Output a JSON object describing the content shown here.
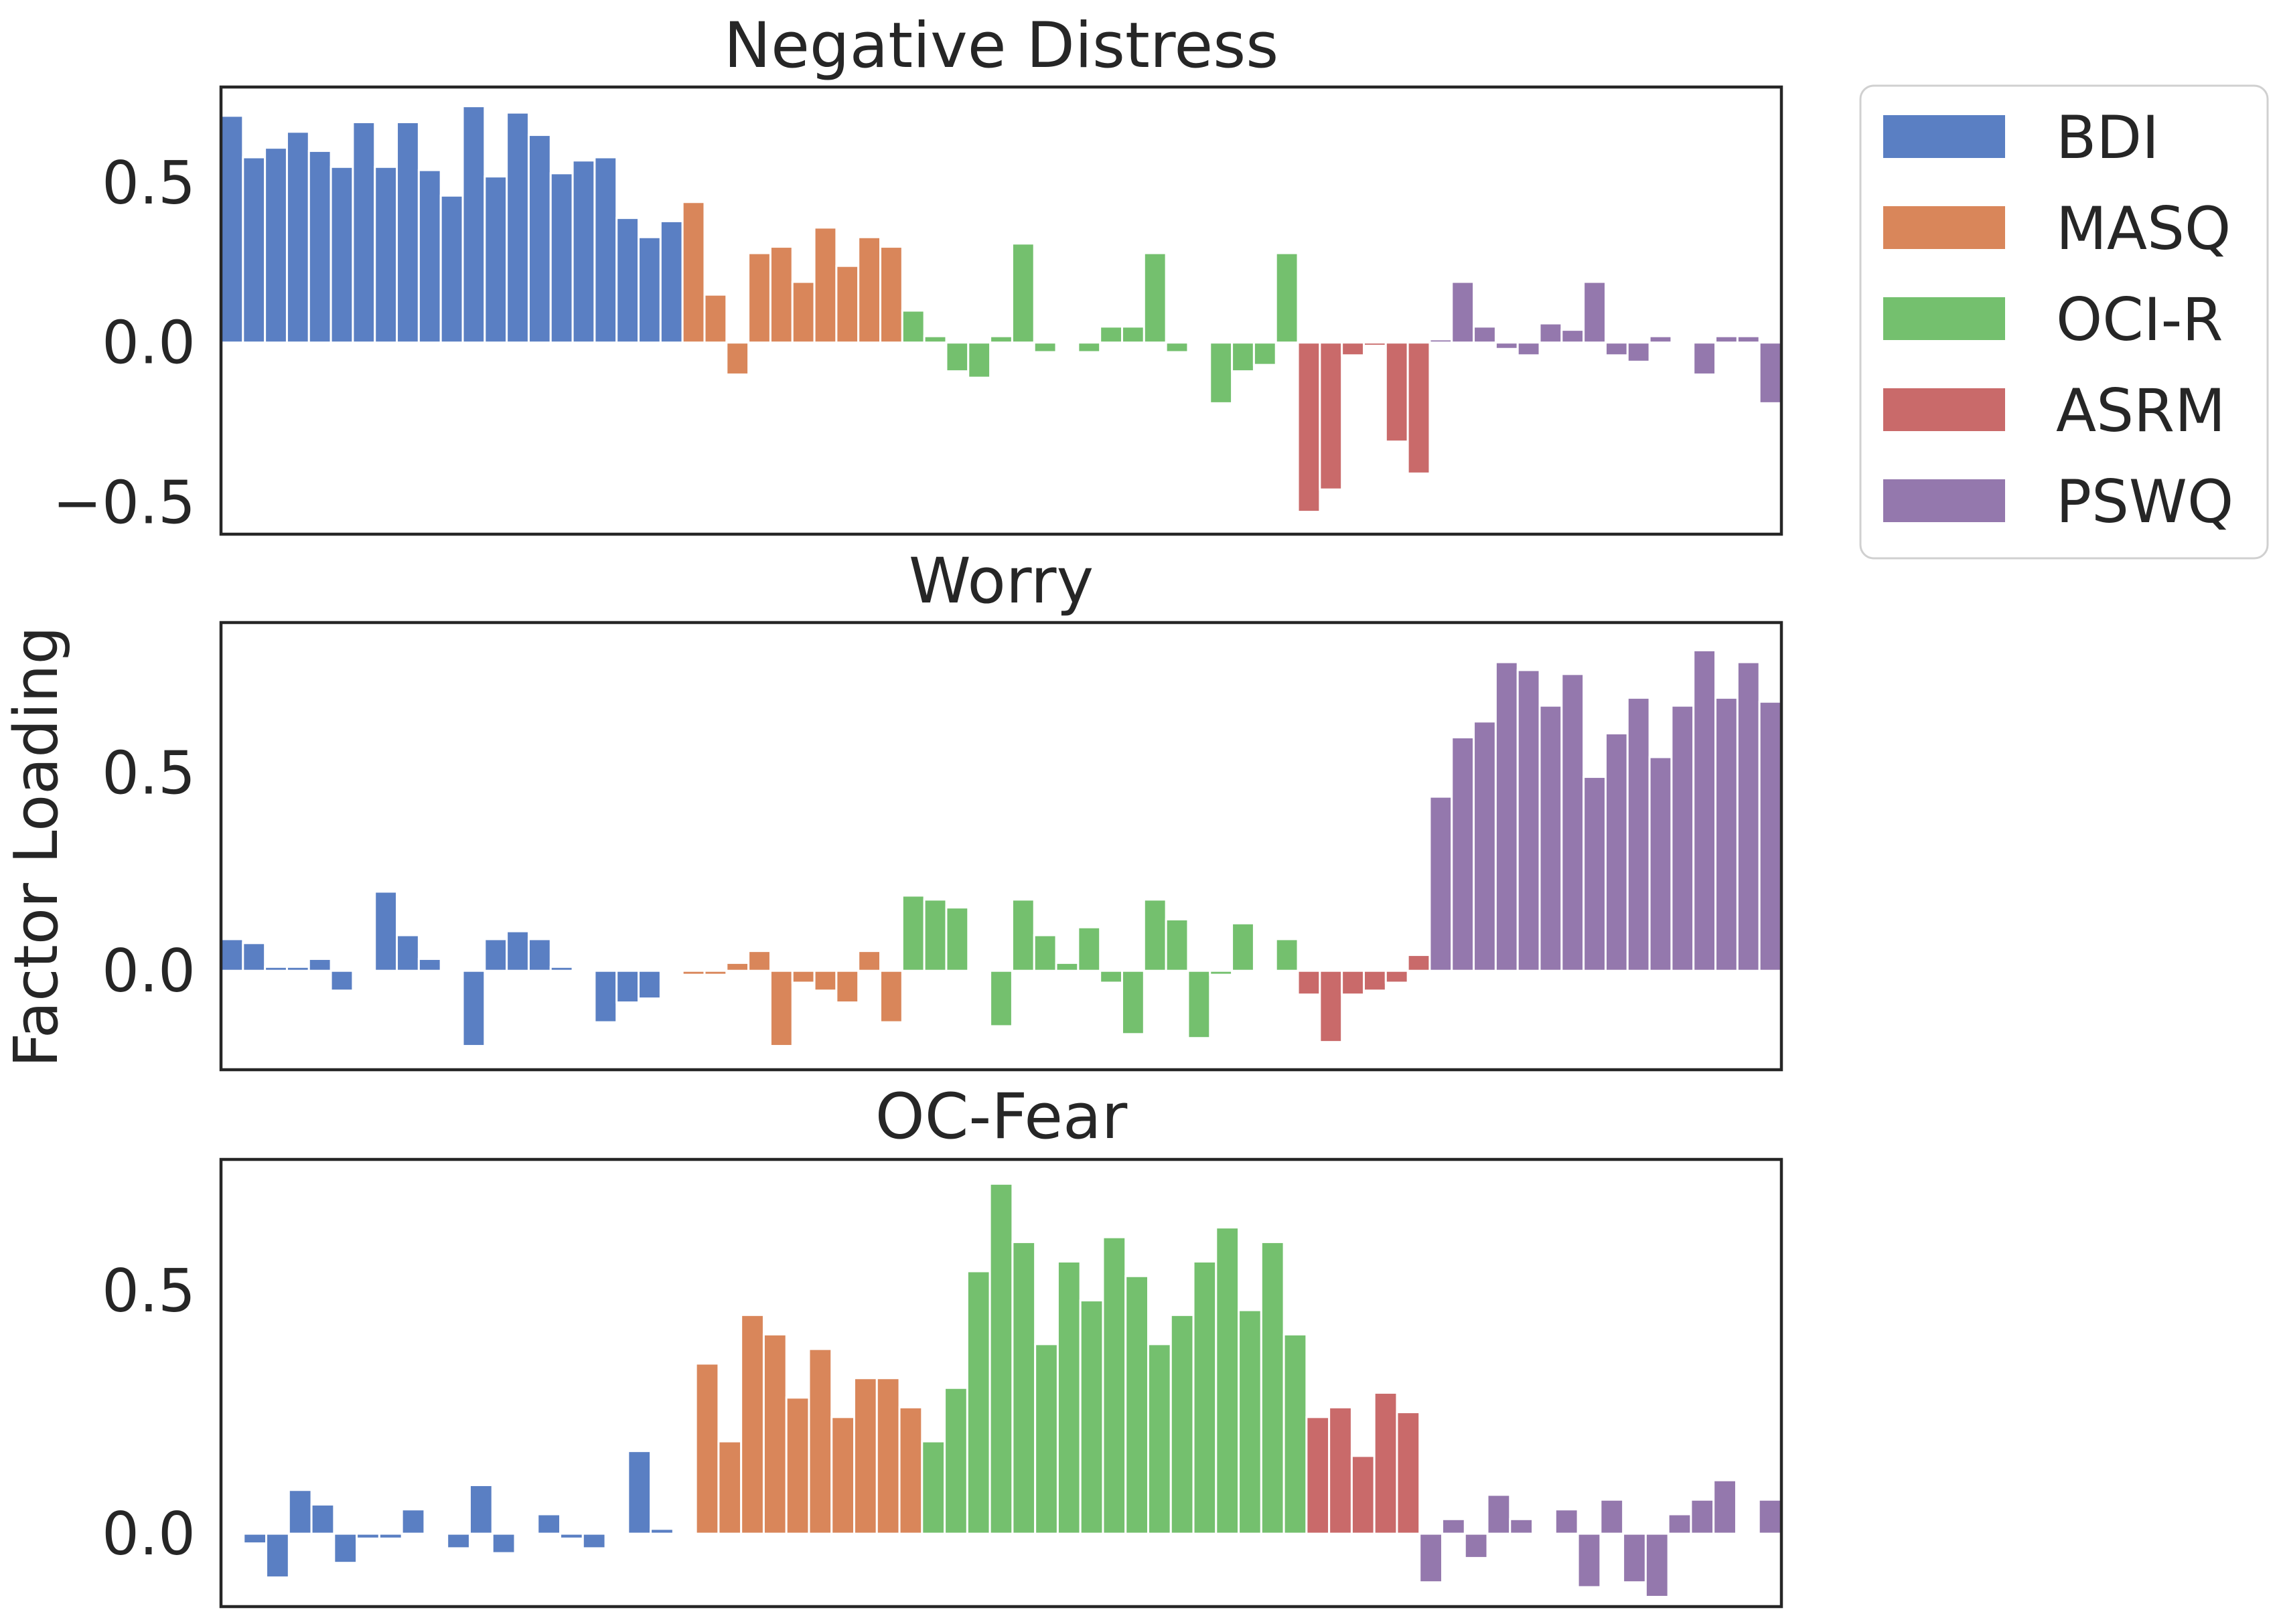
{
  "figure": {
    "ylabel": "Factor Loading"
  },
  "legend": {
    "placement": "outside-top-right",
    "entries": [
      {
        "name": "BDI",
        "color": "#5a7fc3"
      },
      {
        "name": "MASQ",
        "color": "#d9865a"
      },
      {
        "name": "OCI-R",
        "color": "#74c06e"
      },
      {
        "name": "ASRM",
        "color": "#c96a6a"
      },
      {
        "name": "PSWQ",
        "color": "#9478ad"
      }
    ]
  },
  "chart_data": [
    {
      "type": "bar",
      "title": "Negative Distress",
      "xlabel": "",
      "ylabel": "Factor Loading",
      "ylim": [
        -0.6,
        0.8
      ],
      "yticks": [
        -0.5,
        0.0,
        0.5
      ],
      "ytick_labels": [
        "−0.5",
        "0.0",
        "0.5"
      ],
      "grid": false,
      "series": [
        {
          "name": "BDI",
          "values": [
            0.71,
            0.58,
            0.61,
            0.66,
            0.6,
            0.55,
            0.69,
            0.55,
            0.69,
            0.54,
            0.46,
            0.74,
            0.52,
            0.72,
            0.65,
            0.53,
            0.57,
            0.58,
            0.39,
            0.33,
            0.38
          ]
        },
        {
          "name": "MASQ",
          "values": [
            0.44,
            0.15,
            -0.1,
            0.28,
            0.3,
            0.19,
            0.36,
            0.24,
            0.33,
            0.3
          ]
        },
        {
          "name": "OCI-R",
          "values": [
            0.1,
            0.02,
            -0.09,
            -0.11,
            0.02,
            0.31,
            -0.03,
            0.0,
            -0.03,
            0.05,
            0.05,
            0.28,
            -0.03,
            0.0,
            -0.19,
            -0.09,
            -0.07,
            0.28
          ]
        },
        {
          "name": "ASRM",
          "values": [
            -0.53,
            -0.46,
            -0.04,
            -0.01,
            -0.31,
            -0.41
          ]
        },
        {
          "name": "PSWQ",
          "values": [
            0.01,
            0.19,
            0.05,
            -0.02,
            -0.04,
            0.06,
            0.04,
            0.19,
            -0.04,
            -0.06,
            0.02,
            0.0,
            -0.1,
            0.02,
            0.02,
            -0.19
          ]
        }
      ]
    },
    {
      "type": "bar",
      "title": "Worry",
      "xlabel": "",
      "ylabel": "Factor Loading",
      "ylim": [
        -0.25,
        0.88
      ],
      "yticks": [
        0.0,
        0.5
      ],
      "ytick_labels": [
        "0.0",
        "0.5"
      ],
      "grid": false,
      "series": [
        {
          "name": "BDI",
          "values": [
            0.08,
            0.07,
            0.01,
            0.01,
            0.03,
            -0.05,
            0.0,
            0.2,
            0.09,
            0.03,
            0.0,
            -0.19,
            0.08,
            0.1,
            0.08,
            0.01,
            0.0,
            -0.13,
            -0.08,
            -0.07,
            0.0
          ]
        },
        {
          "name": "MASQ",
          "values": [
            -0.01,
            -0.01,
            0.02,
            0.05,
            -0.19,
            -0.03,
            -0.05,
            -0.08,
            0.05,
            -0.13
          ]
        },
        {
          "name": "OCI-R",
          "values": [
            0.19,
            0.18,
            0.16,
            0.0,
            -0.14,
            0.18,
            0.09,
            0.02,
            0.11,
            -0.03,
            -0.16,
            0.18,
            0.13,
            -0.17,
            -0.01,
            0.12,
            0.0,
            0.08
          ]
        },
        {
          "name": "ASRM",
          "values": [
            -0.06,
            -0.18,
            -0.06,
            -0.05,
            -0.03,
            0.04
          ]
        },
        {
          "name": "PSWQ",
          "values": [
            0.44,
            0.59,
            0.63,
            0.78,
            0.76,
            0.67,
            0.75,
            0.49,
            0.6,
            0.69,
            0.54,
            0.67,
            0.81,
            0.69,
            0.78,
            0.68
          ]
        }
      ]
    },
    {
      "type": "bar",
      "title": "OC-Fear",
      "xlabel": "",
      "ylabel": "Factor Loading",
      "ylim": [
        -0.15,
        0.77
      ],
      "yticks": [
        0.0,
        0.5
      ],
      "ytick_labels": [
        "0.0",
        "0.5"
      ],
      "grid": false,
      "series": [
        {
          "name": "BDI",
          "values": [
            0.0,
            -0.02,
            -0.09,
            0.09,
            0.06,
            -0.06,
            -0.01,
            -0.01,
            0.05,
            0.0,
            -0.03,
            0.1,
            -0.04,
            0.0,
            0.04,
            -0.01,
            -0.03,
            0.0,
            0.17,
            0.01,
            0.0
          ]
        },
        {
          "name": "MASQ",
          "values": [
            0.35,
            0.19,
            0.45,
            0.41,
            0.28,
            0.38,
            0.24,
            0.32,
            0.32,
            0.26
          ]
        },
        {
          "name": "OCI-R",
          "values": [
            0.19,
            0.3,
            0.54,
            0.72,
            0.6,
            0.39,
            0.56,
            0.48,
            0.61,
            0.53,
            0.39,
            0.45,
            0.56,
            0.63,
            0.46,
            0.6,
            0.41
          ]
        },
        {
          "name": "ASRM",
          "values": [
            0.24,
            0.26,
            0.16,
            0.29,
            0.25
          ]
        },
        {
          "name": "PSWQ",
          "values": [
            -0.1,
            0.03,
            -0.05,
            0.08,
            0.03,
            0.0,
            0.05,
            -0.11,
            0.07,
            -0.1,
            -0.13,
            0.04,
            0.07,
            0.11,
            0.0,
            0.07
          ]
        }
      ]
    }
  ]
}
